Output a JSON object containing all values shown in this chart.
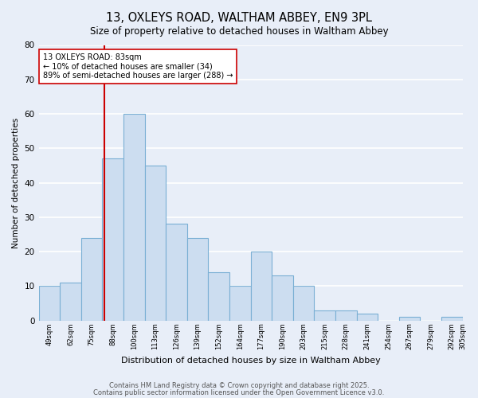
{
  "title": "13, OXLEYS ROAD, WALTHAM ABBEY, EN9 3PL",
  "subtitle": "Size of property relative to detached houses in Waltham Abbey",
  "xlabel": "Distribution of detached houses by size in Waltham Abbey",
  "ylabel": "Number of detached properties",
  "bar_values": [
    10,
    11,
    24,
    47,
    60,
    45,
    28,
    24,
    14,
    10,
    20,
    13,
    10,
    3,
    3,
    2,
    0,
    1,
    0,
    1
  ],
  "categories": [
    "49sqm",
    "62sqm",
    "75sqm",
    "88sqm",
    "100sqm",
    "113sqm",
    "126sqm",
    "139sqm",
    "152sqm",
    "164sqm",
    "177sqm",
    "190sqm",
    "203sqm",
    "215sqm",
    "228sqm",
    "241sqm",
    "254sqm",
    "267sqm",
    "279sqm",
    "292sqm",
    "305sqm"
  ],
  "bar_color": "#ccddf0",
  "bar_edge_color": "#7aafd4",
  "background_color": "#e8eef8",
  "grid_color": "#ffffff",
  "ylim": [
    0,
    80
  ],
  "yticks": [
    0,
    10,
    20,
    30,
    40,
    50,
    60,
    70,
    80
  ],
  "vline_color": "#cc0000",
  "annotation_text": "13 OXLEYS ROAD: 83sqm\n← 10% of detached houses are smaller (34)\n89% of semi-detached houses are larger (288) →",
  "annotation_box_color": "#ffffff",
  "annotation_box_edge": "#cc0000",
  "footer1": "Contains HM Land Registry data © Crown copyright and database right 2025.",
  "footer2": "Contains public sector information licensed under the Open Government Licence v3.0.",
  "title_fontsize": 10.5,
  "subtitle_fontsize": 8.5,
  "annot_fontsize": 7,
  "footer_fontsize": 6,
  "ylabel_fontsize": 7.5,
  "xlabel_fontsize": 8
}
